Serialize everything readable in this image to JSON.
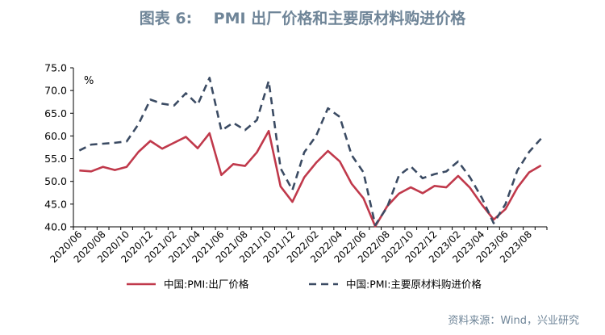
{
  "figure": {
    "title": "图表 6:    PMI 出厂价格和主要原材料购进价格",
    "source": "资料来源：Wind，兴业研究"
  },
  "chart_data": {
    "type": "line",
    "title": "PMI 出厂价格和主要原材料购进价格",
    "xlabel": "",
    "ylabel": "%",
    "ylim": [
      40,
      75
    ],
    "yticks": [
      "40.0",
      "45.0",
      "50.0",
      "55.0",
      "60.0",
      "65.0",
      "70.0",
      "75.0"
    ],
    "grid": false,
    "legend_position": "bottom",
    "x": [
      "2020/06",
      "2020/07",
      "2020/08",
      "2020/09",
      "2020/10",
      "2020/11",
      "2020/12",
      "2021/01",
      "2021/02",
      "2021/03",
      "2021/04",
      "2021/05",
      "2021/06",
      "2021/07",
      "2021/08",
      "2021/09",
      "2021/10",
      "2021/11",
      "2021/12",
      "2022/01",
      "2022/02",
      "2022/03",
      "2022/04",
      "2022/05",
      "2022/06",
      "2022/07",
      "2022/08",
      "2022/09",
      "2022/10",
      "2022/11",
      "2022/12",
      "2023/01",
      "2023/02",
      "2023/03",
      "2023/04",
      "2023/05",
      "2023/06",
      "2023/07",
      "2023/08",
      "2023/09"
    ],
    "xtick_labels": [
      "2020/06",
      "2020/08",
      "2020/10",
      "2020/12",
      "2021/02",
      "2021/04",
      "2021/06",
      "2021/08",
      "2021/10",
      "2021/12",
      "2022/02",
      "2022/04",
      "2022/06",
      "2022/08",
      "2022/10",
      "2022/12",
      "2023/02",
      "2023/04",
      "2023/06",
      "2023/08"
    ],
    "series": [
      {
        "name": "中国:PMI:出厂价格",
        "color": "#c0394b",
        "style": "solid",
        "values": [
          52.4,
          52.2,
          53.2,
          52.5,
          53.2,
          56.5,
          58.9,
          57.2,
          58.5,
          59.8,
          57.3,
          60.6,
          51.4,
          53.8,
          53.4,
          56.4,
          61.1,
          48.9,
          45.5,
          50.9,
          54.1,
          56.7,
          54.4,
          49.5,
          46.3,
          40.1,
          44.5,
          47.3,
          48.7,
          47.4,
          49.0,
          48.7,
          51.2,
          48.6,
          44.9,
          41.6,
          43.9,
          48.6,
          52.0,
          53.5
        ]
      },
      {
        "name": "中国:PMI:主要原材料购进价格",
        "color": "#3b4b63",
        "style": "dashed",
        "values": [
          56.8,
          58.1,
          58.3,
          58.5,
          58.8,
          62.6,
          68.0,
          67.1,
          66.7,
          69.4,
          66.9,
          72.8,
          61.2,
          62.9,
          61.3,
          63.5,
          72.1,
          52.9,
          48.1,
          56.4,
          60.0,
          66.1,
          64.2,
          55.8,
          52.0,
          40.4,
          44.3,
          51.3,
          53.3,
          50.7,
          51.6,
          52.2,
          54.4,
          50.9,
          46.4,
          40.8,
          45.0,
          52.4,
          56.5,
          59.4
        ]
      }
    ]
  }
}
